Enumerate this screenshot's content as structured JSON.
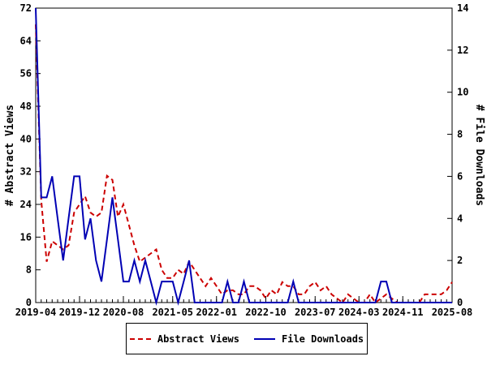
{
  "chart_data": {
    "type": "line",
    "title": "",
    "n_points": 77,
    "x_start": "2019-04",
    "x_end": "2025-08",
    "x_ticks": [
      {
        "label": "2019-04",
        "month": 0
      },
      {
        "label": "2019-12",
        "month": 8
      },
      {
        "label": "2020-08",
        "month": 16
      },
      {
        "label": "2021-05",
        "month": 25
      },
      {
        "label": "2022-01",
        "month": 33
      },
      {
        "label": "2022-10",
        "month": 42
      },
      {
        "label": "2023-07",
        "month": 51
      },
      {
        "label": "2024-03",
        "month": 59
      },
      {
        "label": "2024-11",
        "month": 67
      },
      {
        "label": "2025-08",
        "month": 76
      }
    ],
    "left_axis": {
      "label": "# Abstract Views",
      "min": 0,
      "max": 72,
      "tick_step": 8,
      "ticks": [
        0,
        8,
        16,
        24,
        32,
        40,
        48,
        56,
        64,
        72
      ]
    },
    "right_axis": {
      "label": "# File Downloads",
      "min": 0,
      "max": 14,
      "tick_step": 2,
      "ticks": [
        0,
        2,
        4,
        6,
        8,
        10,
        12,
        14
      ]
    },
    "grid": false,
    "legend_position": "bottom-center",
    "colors": {
      "frame": "#000000",
      "abstract_views": "#cc0000",
      "file_downloads": "#0000b4"
    },
    "series": [
      {
        "name": "Abstract Views",
        "axis": "left",
        "color": "#cc0000",
        "style": "dashed",
        "values": [
          68,
          25,
          10,
          15,
          14,
          13,
          14,
          22,
          24,
          26,
          22,
          21,
          22,
          31,
          30,
          21,
          24,
          19,
          14,
          10,
          11,
          12,
          13,
          8,
          6,
          6,
          8,
          7,
          10,
          8,
          6,
          4,
          6,
          4,
          2,
          3,
          3,
          2,
          2,
          4,
          4,
          3,
          1,
          3,
          2,
          5,
          4,
          4,
          2,
          2,
          4,
          5,
          3,
          4,
          2,
          1,
          0,
          2,
          1,
          0,
          0,
          2,
          0,
          1,
          2,
          1,
          0,
          0,
          0,
          0,
          0,
          2,
          2,
          2,
          2,
          3,
          5
        ]
      },
      {
        "name": "File Downloads",
        "axis": "right",
        "color": "#0000b4",
        "style": "solid",
        "values": [
          14,
          5,
          5,
          6,
          4,
          2,
          4,
          6,
          6,
          3,
          4,
          2,
          1,
          3,
          5,
          3,
          1,
          1,
          2,
          1,
          2,
          1,
          0,
          1,
          1,
          1,
          0,
          1,
          2,
          0,
          0,
          0,
          0,
          0,
          0,
          1,
          0,
          0,
          1,
          0,
          0,
          0,
          0,
          0,
          0,
          0,
          0,
          1,
          0,
          0,
          0,
          0,
          0,
          0,
          0,
          0,
          0,
          0,
          0,
          0,
          0,
          0,
          0,
          1,
          1,
          0,
          0,
          0,
          0,
          0,
          0,
          0,
          0,
          0,
          0,
          0,
          0
        ]
      }
    ]
  }
}
